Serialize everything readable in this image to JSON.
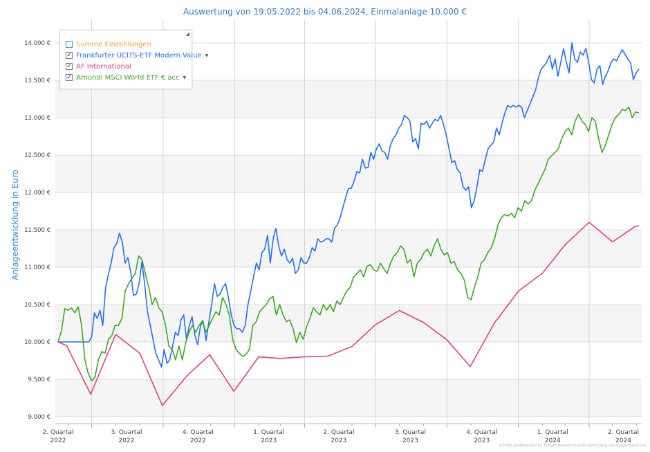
{
  "chart_data": {
    "type": "line",
    "title": "Auswertung von 19.05.2022 bis 04.06.2024, Einmalanlage 10.000 €",
    "ylabel": "Anlageentwicklung  in Euro",
    "xlabel": "",
    "date_range": [
      "2022-05-19",
      "2024-06-04"
    ],
    "ylim": [
      8850,
      14250
    ],
    "yticks": [
      9000,
      9500,
      10000,
      10500,
      11000,
      11500,
      12000,
      12500,
      13000,
      13500,
      14000
    ],
    "ytick_labels": [
      "9.000 €",
      "9.500 €",
      "10.000 €",
      "10.500 €",
      "11.000 €",
      "11.500 €",
      "12.000 €",
      "12.500 €",
      "13.000 €",
      "13.500 €",
      "14.000 €"
    ],
    "xticks": [
      {
        "date": "2022-05-19",
        "line1": "2. Quartal",
        "line2": "2022"
      },
      {
        "date": "2022-08-15",
        "line1": "3. Quartal",
        "line2": "2022"
      },
      {
        "date": "2022-11-15",
        "line1": "4. Quartal",
        "line2": "2022"
      },
      {
        "date": "2023-02-14",
        "line1": "1. Quartal",
        "line2": "2023"
      },
      {
        "date": "2023-05-15",
        "line1": "2. Quartal",
        "line2": "2023"
      },
      {
        "date": "2023-08-15",
        "line1": "3. Quartal",
        "line2": "2023"
      },
      {
        "date": "2023-11-15",
        "line1": "4. Quartal",
        "line2": "2023"
      },
      {
        "date": "2024-02-14",
        "line1": "1. Quartal",
        "line2": "2024"
      },
      {
        "date": "2024-05-15",
        "line1": "2. Quartal",
        "line2": "2024"
      }
    ],
    "quarter_boundaries": [
      "2022-07-01",
      "2022-10-01",
      "2023-01-01",
      "2023-04-01",
      "2023-07-01",
      "2023-10-01",
      "2024-01-01",
      "2024-04-01"
    ],
    "grid": true,
    "legend_position": "top-left",
    "series": [
      {
        "name": "Summe Einzahlungen",
        "color": "#f5a030",
        "checked": false,
        "dropdown": false,
        "values": []
      },
      {
        "name": "Frankfurter UCITS-ETF Modern Value",
        "color": "#1f6fff",
        "checked": true,
        "dropdown": true,
        "values": [
          10000,
          10000,
          10000,
          10000,
          10000,
          10000,
          10000,
          10000,
          10000,
          10000,
          10000,
          10000,
          10065,
          10390,
          10315,
          10425,
          10220,
          10730,
          10900,
          11055,
          11260,
          11315,
          11455,
          11335,
          11055,
          11130,
          10935,
          10620,
          10640,
          10780,
          11075,
          10780,
          10405,
          10220,
          10035,
          9850,
          9760,
          9665,
          9900,
          9715,
          9760,
          9945,
          10130,
          10085,
          10295,
          10360,
          10035,
          10220,
          10335,
          10085,
          9965,
          10220,
          10270,
          10020,
          10270,
          10500,
          10780,
          10610,
          10640,
          10730,
          10780,
          10595,
          10360,
          10220,
          10175,
          10175,
          10130,
          10220,
          10500,
          10685,
          10870,
          11055,
          10965,
          11195,
          11240,
          11425,
          11055,
          11380,
          11520,
          11285,
          11150,
          11240,
          11100,
          11055,
          11120,
          10915,
          10965,
          11130,
          11055,
          11055,
          11130,
          11260,
          11215,
          11380,
          11335,
          11350,
          11380,
          11380,
          11335,
          11520,
          11565,
          11660,
          11795,
          11935,
          12055,
          12055,
          12150,
          12280,
          12260,
          12445,
          12325,
          12335,
          12535,
          12445,
          12585,
          12650,
          12555,
          12535,
          12445,
          12630,
          12720,
          12770,
          12860,
          12910,
          13030,
          13000,
          12955,
          12675,
          12720,
          12585,
          12925,
          12910,
          12955,
          12860,
          12925,
          12980,
          12955,
          13030,
          12910,
          12770,
          12585,
          12400,
          12425,
          12305,
          12260,
          12075,
          12030,
          12075,
          11795,
          11890,
          12075,
          12305,
          12280,
          12445,
          12585,
          12630,
          12675,
          12860,
          12770,
          12925,
          13065,
          13165,
          13140,
          13165,
          13140,
          13165,
          13140,
          13000,
          13095,
          13185,
          13280,
          13370,
          13535,
          13650,
          13695,
          13740,
          13835,
          13650,
          13785,
          13555,
          13740,
          13925,
          13740,
          13600,
          14000,
          13785,
          13740,
          13880,
          13835,
          13925,
          13740,
          13510,
          13465,
          13650,
          13695,
          13445,
          13555,
          13630,
          13740,
          13785,
          13760,
          13835,
          13910,
          13850,
          13785,
          13740,
          13510,
          13600,
          13650
        ]
      },
      {
        "name": "AF International",
        "color": "#e8407a",
        "checked": true,
        "dropdown": false,
        "points": [
          [
            "2022-05-19",
            10000
          ],
          [
            "2022-05-30",
            9950
          ],
          [
            "2022-06-30",
            9300
          ],
          [
            "2022-08-01",
            10100
          ],
          [
            "2022-09-01",
            9850
          ],
          [
            "2022-09-30",
            9150
          ],
          [
            "2022-11-01",
            9550
          ],
          [
            "2022-11-30",
            9830
          ],
          [
            "2022-12-31",
            9340
          ],
          [
            "2023-02-01",
            9800
          ],
          [
            "2023-03-01",
            9780
          ],
          [
            "2023-03-31",
            9800
          ],
          [
            "2023-05-01",
            9810
          ],
          [
            "2023-06-01",
            9940
          ],
          [
            "2023-07-01",
            10230
          ],
          [
            "2023-08-01",
            10420
          ],
          [
            "2023-09-01",
            10260
          ],
          [
            "2023-10-01",
            10030
          ],
          [
            "2023-10-31",
            9670
          ],
          [
            "2023-12-01",
            10250
          ],
          [
            "2024-01-01",
            10680
          ],
          [
            "2024-02-01",
            10920
          ],
          [
            "2024-03-01",
            11300
          ],
          [
            "2024-04-01",
            11600
          ],
          [
            "2024-05-01",
            11340
          ],
          [
            "2024-05-31",
            11550
          ],
          [
            "2024-06-04",
            11550
          ]
        ]
      },
      {
        "name": "Amundi MSCI World ETF € acc",
        "color": "#3aaa1e",
        "checked": true,
        "dropdown": true,
        "values": [
          10000,
          10150,
          10445,
          10425,
          10455,
          10390,
          10470,
          10220,
          9760,
          9575,
          9480,
          9530,
          9760,
          9870,
          9850,
          10035,
          10085,
          10220,
          10220,
          10315,
          10685,
          10780,
          10850,
          10915,
          11150,
          11100,
          10915,
          10730,
          10500,
          10595,
          10455,
          10405,
          10220,
          9945,
          9900,
          9760,
          9945,
          9760,
          9990,
          10130,
          10220,
          10130,
          10220,
          10285,
          10130,
          10220,
          10315,
          10405,
          10360,
          10595,
          10500,
          10360,
          10035,
          9900,
          9850,
          9805,
          9835,
          9900,
          10220,
          10270,
          10405,
          10455,
          10500,
          10575,
          10610,
          10360,
          10500,
          10360,
          10270,
          10295,
          10175,
          9990,
          10130,
          10035,
          10205,
          10315,
          10455,
          10405,
          10360,
          10500,
          10425,
          10500,
          10405,
          10545,
          10500,
          10595,
          10685,
          10730,
          10870,
          10915,
          10965,
          10870,
          11010,
          11035,
          10965,
          10945,
          11055,
          10980,
          10915,
          11055,
          11150,
          11195,
          11285,
          11240,
          11055,
          11100,
          10870,
          11055,
          11100,
          11195,
          11240,
          11150,
          11285,
          11380,
          11240,
          11165,
          11195,
          11055,
          11075,
          10965,
          10915,
          10825,
          10595,
          10565,
          10730,
          10870,
          11055,
          11100,
          11195,
          11260,
          11380,
          11565,
          11660,
          11705,
          11685,
          11720,
          11660,
          11795,
          11750,
          11890,
          11845,
          11890,
          12030,
          12120,
          12215,
          12305,
          12445,
          12490,
          12535,
          12585,
          12720,
          12815,
          12860,
          12770,
          12955,
          13045,
          12955,
          12910,
          12815,
          13000,
          12955,
          12720,
          12535,
          12630,
          12770,
          12910,
          13000,
          13045,
          13110,
          13095,
          13140,
          13000,
          13075,
          13065
        ]
      }
    ]
  },
  "legend": {
    "items": [
      {
        "label": "Summe Einzahlungen",
        "color": "#f5a030",
        "checked": false,
        "dropdown": false
      },
      {
        "label": "Frankfurter UCITS-ETF Modern Value",
        "color": "#1f6fff",
        "checked": true,
        "dropdown": true
      },
      {
        "label": "AF International",
        "color": "#e8407a",
        "checked": true,
        "dropdown": false
      },
      {
        "label": "Amundi MSCI World ETF € acc",
        "color": "#3aaa1e",
        "checked": true,
        "dropdown": true
      }
    ]
  },
  "watermark": "©FVBS professional by Edisoft.AdvisorsStudio.StaticData.DeveloperDataCore"
}
